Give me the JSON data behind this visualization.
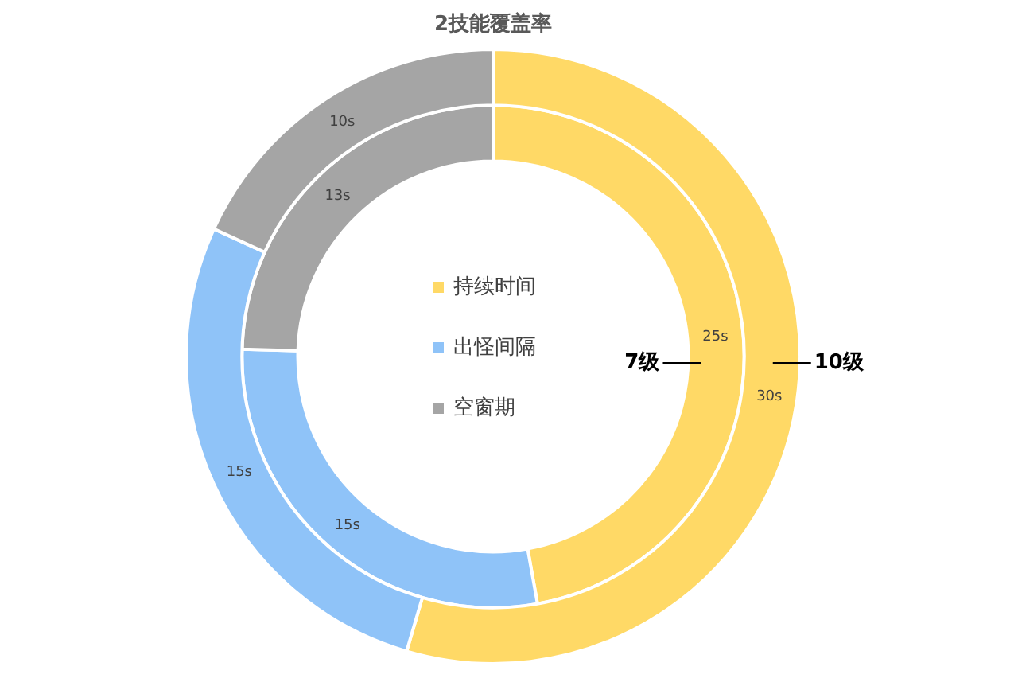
{
  "chart_data": {
    "type": "donut",
    "title": "2技能覆盖率",
    "categories": [
      "持续时间",
      "出怪间隔",
      "空窗期"
    ],
    "legend": "center",
    "series": [
      {
        "name": "10级",
        "colors": [
          "#ffd966",
          "#8fc3f8",
          "#a5a5a5"
        ],
        "values": [
          30,
          15,
          10
        ],
        "value_labels": [
          "30s",
          "15s",
          "10s"
        ]
      },
      {
        "name": "7级",
        "colors": [
          "#ffd966",
          "#8fc3f8",
          "#a5a5a5"
        ],
        "values": [
          25,
          15,
          13
        ],
        "value_labels": [
          "25s",
          "15s",
          "13s"
        ]
      }
    ]
  }
}
